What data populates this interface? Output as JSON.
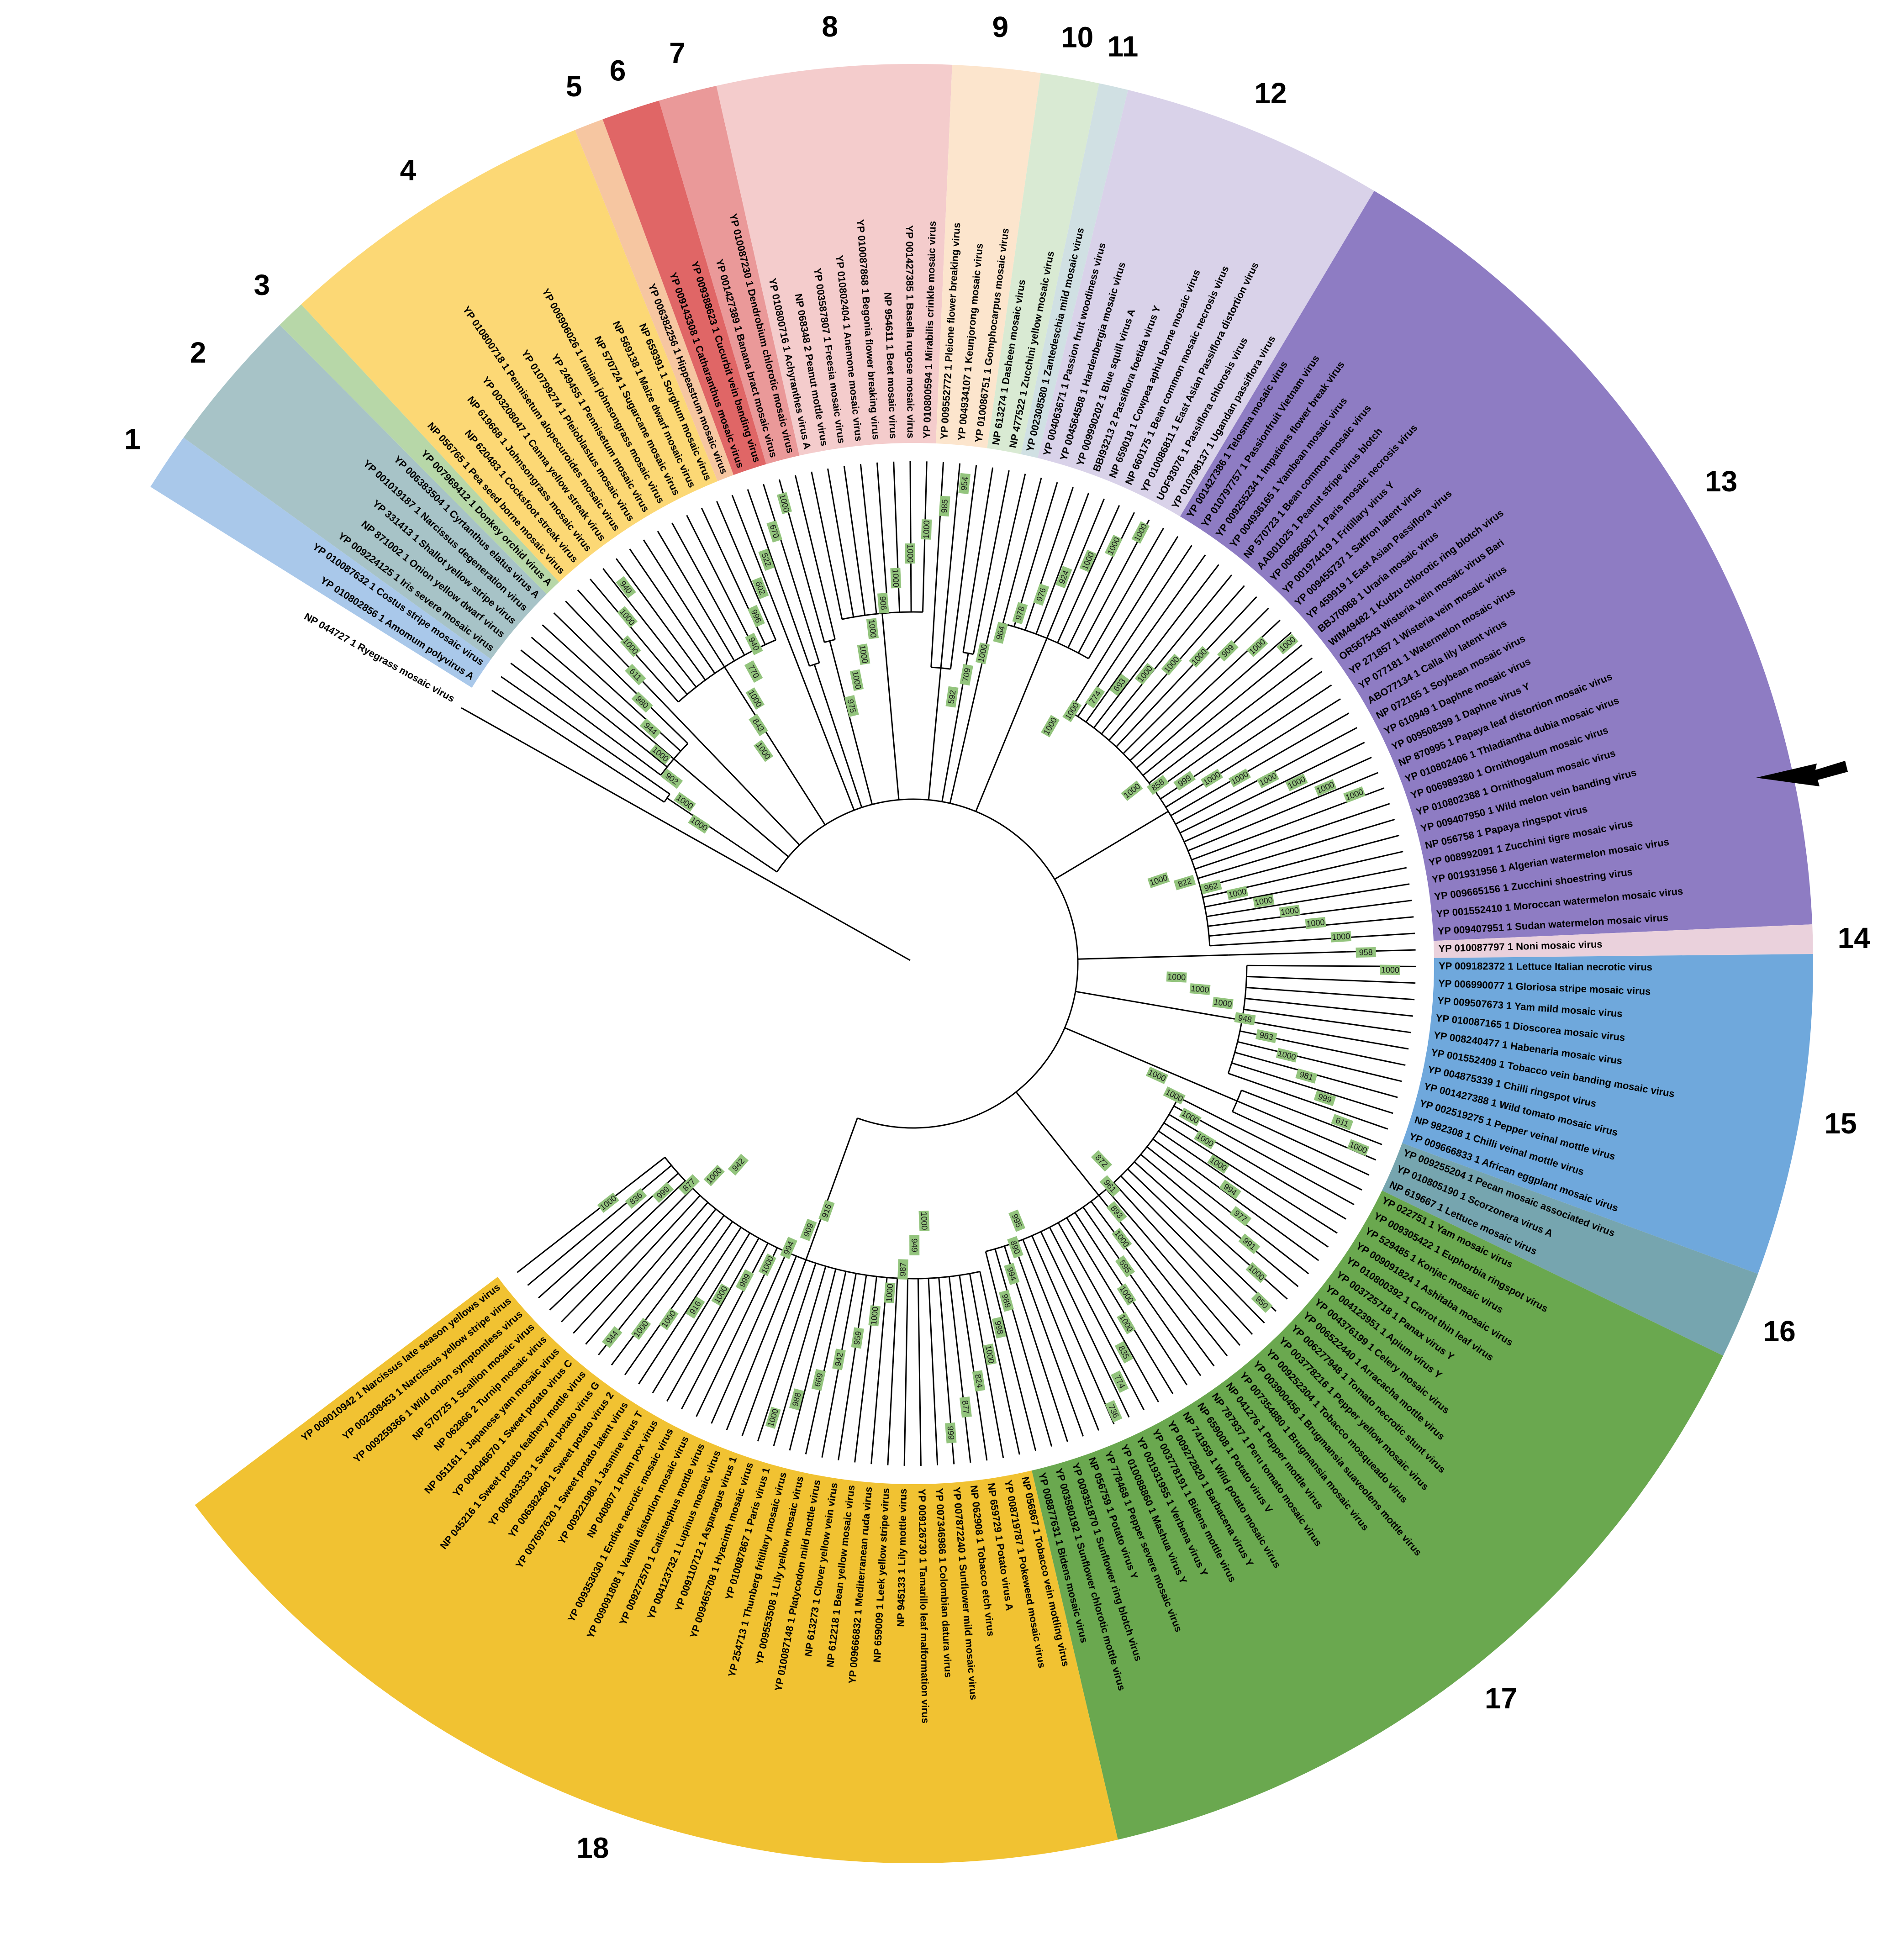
{
  "colors": {
    "c1": "#a9c8ea",
    "c2": "#a7c3c7",
    "c3": "#b7d7a8",
    "c4": "#fcd875",
    "c5": "#f6c6a1",
    "c6": "#e06666",
    "c7": "#ea9999",
    "c8": "#f4cccc",
    "c9": "#fce5cd",
    "c10": "#d9ead3",
    "c11": "#d0e0e3",
    "c12": "#d9d2e9",
    "c13": "#8e7cc3",
    "c14": "#ead1dc",
    "c15": "#6fa8dc",
    "c16": "#76a5af",
    "c17": "#6aa84f",
    "c18": "#f1c232",
    "bootstrap": "#93c47d",
    "branch": "#000000"
  },
  "arrow": {
    "icon": "arrow-left-icon",
    "target_clade": "13"
  },
  "clades": [
    {
      "id": "1",
      "color_key": "c1",
      "labels": [
        "YP 010802856 1 Amomum polyvirus A",
        "YP 010087632 1 Costus stripe mosaic virus"
      ]
    },
    {
      "id": "2",
      "color_key": "c2",
      "labels": [
        "YP 009224125 1 Iris severe mosaic virus",
        "NP 871002 1 Onion yellow dwarf virus",
        "YP 331413 1 Shallot yellow stripe virus",
        "YP 001019187 1 Narcissus degeneration virus",
        "YP 006383504 1 Cyrtanthus elatus virus A"
      ]
    },
    {
      "id": "3",
      "color_key": "c3",
      "labels": [
        "YP 007969412 1 Donkey orchid virus A"
      ]
    },
    {
      "id": "4",
      "color_key": "c4",
      "labels": [
        "NP 056765 1 Pea seed borne mosaic virus",
        "NP 620483 1 Cocksfoot streak virus",
        "NP 619668 1 Johnsongrass mosaic virus",
        "YP 003208047 1 Canna yellow streak virus",
        "YP 010800718 1 Pennisetum alopecuroides mosaic virus",
        "YP 010799274 1 Pleioblastus mosaic virus",
        "YP 249455 1 Pennisetum mosaic virus",
        "YP 006906026 1 Iranian johnsongrass mosaic virus",
        "NP 570724 1 Sugarcane mosaic virus",
        "NP 569138 1 Maize dwarf mosaic virus",
        "NP 659391 1 Sorghum mosaic virus"
      ]
    },
    {
      "id": "5",
      "color_key": "c5",
      "labels": [
        "YP 006382256 1 Hippeastrum mosaic virus"
      ]
    },
    {
      "id": "6",
      "color_key": "c6",
      "labels": [
        "YP 009143308 1 Catharanthus mosaic virus",
        "YP 009388623 1 Cucurbit vein banding virus"
      ]
    },
    {
      "id": "7",
      "color_key": "c7",
      "labels": [
        "YP 001427389 1 Banana bract mosaic virus",
        "YP 010087230 1 Dendrobium chlorotic mosaic virus"
      ]
    },
    {
      "id": "8",
      "color_key": "c8",
      "labels": [
        "YP 010800716 1 Achyranthes virus A",
        "NP 068348 2 Peanut mottle virus",
        "YP 003587807 1 Freesia mosaic virus",
        "YP 010802404 1 Anemone mosaic virus",
        "YP 010087868 1 Begonia flower breaking virus",
        "NP 954611 1 Beet mosaic virus",
        "YP 001427385 1 Basella rugose mosaic virus",
        "YP 010800594 1 Mirabilis crinkle mosaic virus"
      ]
    },
    {
      "id": "9",
      "color_key": "c9",
      "labels": [
        "YP 009552772 1 Pleione flower breaking virus",
        "YP 004934107 1 Keunjorong mosaic virus",
        "YP 010086751 1 Gomphocarpus mosaic virus"
      ]
    },
    {
      "id": "10",
      "color_key": "c10",
      "labels": [
        "NP 613274 1 Dasheen mosaic virus",
        "NP 477522 1 Zucchini yellow mosaic virus"
      ]
    },
    {
      "id": "11",
      "color_key": "c11",
      "labels": [
        "YP 002308580 1 Zantedeschia mild mosaic virus"
      ]
    },
    {
      "id": "12",
      "color_key": "c12",
      "labels": [
        "YP 004063671 1 Passion fruit woodiness virus",
        "YP 004564588 1 Hardenbergia mosaic virus",
        "YP 009990202 1 Blue squill virus A",
        "BBI93213 2 Passiflora foetida virus Y",
        "NP 659018 1 Cowpea aphid borne mosaic virus",
        "NP 660175 1 Bean common mosaic necrosis virus",
        "YP 010086811 1 East Asian Passiflora distortion virus",
        "UOF93076 1 Passiflora chlorosis virus",
        "YP 010798137 1 Ugandan passiflora virus"
      ]
    },
    {
      "id": "13",
      "color_key": "c13",
      "labels": [
        "YP 001427386 1 Telosma mosaic virus",
        "YP 010797757 1 Passionfruit Vietnam virus",
        "YP 009255234 1 Impatiens flower break virus",
        "YP 004936165 1 Yambean mosaic virus",
        "NP 570723 1 Bean common mosaic virus",
        "AAB01025 1 Peanut stripe virus blotch",
        "YP 009666817 1 Paris mosaic necrosis virus",
        "YP 001974419 1 Fritillary virus Y",
        "YP 009455737 1 Saffron latent virus",
        "YP 459919 1 East Asian Passiflora virus",
        "BBJ70068 1 Uraria mosaic virus",
        "WIM49482 1 Kudzu chlorotic ring blotch virus",
        "OR567543 Wisteria vein mosaic virus Bari",
        "YP 271857 1 Wisteria vein mosaic virus",
        "YP 077181 1 Watermelon mosaic virus",
        "ABO77134 1 Calla lily latent virus",
        "NP 072165 1 Soybean mosaic virus",
        "YP 610949 1 Daphne mosaic virus",
        "YP 009508399 1 Daphne virus Y",
        "NP 870995 1 Papaya leaf distortion mosaic virus",
        "YP 010802406 1 Thladiantha dubia mosaic virus",
        "YP 006989380 1 Ornithogalum mosaic virus",
        "YP 010802388 1 Ornithogalum mosaic virus",
        "YP 009407950 1 Wild melon vein banding virus",
        "NP 056758 1 Papaya ringspot virus",
        "YP 008992091 1 Zucchini tigre mosaic virus",
        "YP 001931956 1 Algerian watermelon mosaic virus",
        "YP 009665156 1 Zucchini shoestring virus",
        "YP 001552410 1 Moroccan watermelon mosaic virus",
        "YP 009407951 1 Sudan watermelon mosaic virus"
      ]
    },
    {
      "id": "14",
      "color_key": "c14",
      "labels": [
        "YP 010087797 1 Noni mosaic virus"
      ]
    },
    {
      "id": "15",
      "color_key": "c15",
      "labels": [
        "YP 009182372 1 Lettuce Italian necrotic virus",
        "YP 006990077 1 Gloriosa stripe mosaic virus",
        "YP 009507673 1 Yam mild mosaic virus",
        "YP 010087165 1 Dioscorea mosaic virus",
        "YP 008240477 1 Habenaria mosaic virus",
        "YP 001552409 1 Tobacco vein banding mosaic virus",
        "YP 004875339 1 Chilli ringspot virus",
        "YP 001427388 1 Wild tomato mosaic virus",
        "YP 002519275 1 Pepper veinal mottle virus",
        "NP 982308 1 Chilli veinal mottle virus",
        "YP 009666833 1 African eggplant mosaic virus"
      ]
    },
    {
      "id": "16",
      "color_key": "c16",
      "labels": [
        "YP 009255204 1 Pecan mosaic associated virus",
        "YP 010805190 1 Scorzonera virus A",
        "NP 619667 1 Lettuce mosaic virus"
      ]
    },
    {
      "id": "17",
      "color_key": "c17",
      "labels": [
        "YP 022751 1 Yam mosaic virus",
        "YP 009305422 1 Euphorbia ringspot virus",
        "YP 529485 1 Konjac mosaic virus",
        "YP 009091824 1 Ashitaba mosaic virus",
        "YP 010800392 1 Carrot thin leaf virus",
        "YP 003725718 1 Panax virus Y",
        "YP 004123951 1 Apium virus Y",
        "YP 004376199 1 Celery mosaic virus",
        "YP 006522440 1 Arracacha mottle virus",
        "YP 006277948 1 Tomato necrotic stunt virus",
        "YP 003778216 1 Pepper yellow mosaic virus",
        "YP 009252304 1 Tobacco mosqueado virus",
        "YP 003900456 1 Brugmansia suaveolens mottle virus",
        "YP 007354880 1 Brugmansia mosaic virus",
        "NP 041276 1 Pepper mottle virus",
        "NP 787937 1 Peru tomato mosaic virus",
        "NP 659008 1 Potato virus V",
        "NP 741959 1 Wild potato mosaic virus",
        "YP 009272820 1 Barbacena virus Y",
        "YP 003778191 1 Bidens mottle virus",
        "YP 001931955 1 Verbena virus Y",
        "YP 010088860 1 Mashua virus Y",
        "YP 778468 1 Pepper severe mosaic virus",
        "NP 056759 1 Potato virus Y",
        "YP 009351870 1 Sunflower ring blotch virus",
        "YP 003580192 1 Sunflower chlorotic mottle virus",
        "YP 008877631 1 Bidens mosaic virus"
      ]
    },
    {
      "id": "18",
      "color_key": "c18",
      "labels": [
        "NP 056867 1 Tobacco vein mottling virus",
        "YP 008719787 1 Pokeweed mosaic virus",
        "NP 659729 1 Potato virus A",
        "NP 062908 1 Tobacco etch virus",
        "YP 007872240 1 Sunflower mild mosaic virus",
        "YP 007346986 1 Colombian datura virus",
        "YP 009126730 1 Tamarillo leaf malformation virus",
        "NP 945133 1 Lily mottle virus",
        "NP 659009 1 Leek yellow stripe virus",
        "YP 009666832 1 Mediterranean ruda virus",
        "NP 612218 1 Bean yellow mosaic virus",
        "NP 613273 1 Clover yellow vein virus",
        "YP 010087148 1 Platycodon mild mottle virus",
        "YP 009553508 1 Lily yellow mosaic virus",
        "YP 254713 1 Thunberg fritillary mosaic virus",
        "YP 010087867 1 Paris virus 1",
        "YP 009465708 1 Hyacinth mosaic virus",
        "YP 009110712 1 Asparagus virus 1",
        "YP 004123732 1 Lupinus mosaic virus",
        "YP 009272570 1 Callistephus mottle virus",
        "YP 009091808 1 Vanilla distortion mosaic virus",
        "YP 009353030 1 Endive necrotic mosaic virus",
        "NP 040807 1 Plum pox virus",
        "YP 009221980 1 Jasmine virus T",
        "YP 007697620 1 Sweet potato latent virus",
        "YP 006382460 1 Sweet potato virus 2",
        "YP 006493333 1 Sweet potato virus G",
        "NP 045216 1 Sweet potato feathery mottle virus",
        "YP 004046670 1 Sweet potato virus C",
        "NP 051161 1 Japanese yam mosaic virus",
        "NP 062866 2 Turnip mosaic virus",
        "NP 570725 1 Scallion mosaic virus",
        "YP 009259366 1 Wild onion symptomless virus",
        "YP 002308453 1 Narcissus yellow stripe virus",
        "YP 009010942 1 Narcissus late season yellows virus"
      ]
    }
  ],
  "outgroup": "NP 044727 1 Ryegrass mosaic virus",
  "bootstrap_values": [
    "1000",
    "1000",
    "902",
    "1000",
    "944",
    "980",
    "611",
    "1000",
    "1000",
    "940",
    "1000",
    "843",
    "1000",
    "770",
    "940",
    "996",
    "602",
    "522",
    "670",
    "1000",
    "975",
    "1000",
    "1000",
    "1000",
    "906",
    "1000",
    "1000",
    "1000",
    "985",
    "954",
    "592",
    "709",
    "1000",
    "964",
    "978",
    "976",
    "924",
    "1000",
    "1000",
    "1000",
    "1000",
    "1000",
    "774",
    "693",
    "1000",
    "1000",
    "1000",
    "909",
    "1000",
    "1000",
    "1000",
    "858",
    "999",
    "1000",
    "1000",
    "1000",
    "1000",
    "1000",
    "1000",
    "1000",
    "822",
    "962",
    "1000",
    "1000",
    "1000",
    "1000",
    "1000",
    "958",
    "1000",
    "1000",
    "1000",
    "1000",
    "948",
    "983",
    "1000",
    "981",
    "999",
    "611",
    "1000",
    "1000",
    "1000",
    "1000",
    "1000",
    "1000",
    "994",
    "977",
    "991",
    "1000",
    "950",
    "872",
    "961",
    "893",
    "1000",
    "595",
    "1000",
    "1000",
    "835",
    "774",
    "736",
    "995",
    "890",
    "994",
    "988",
    "998",
    "1000",
    "824",
    "877",
    "999",
    "1000",
    "949",
    "987",
    "1000",
    "1000",
    "959",
    "942",
    "669",
    "988",
    "1000",
    "916",
    "909",
    "994",
    "1000",
    "999",
    "1000",
    "916",
    "1000",
    "1000",
    "944",
    "942",
    "1000",
    "877",
    "999",
    "836",
    "1000"
  ]
}
